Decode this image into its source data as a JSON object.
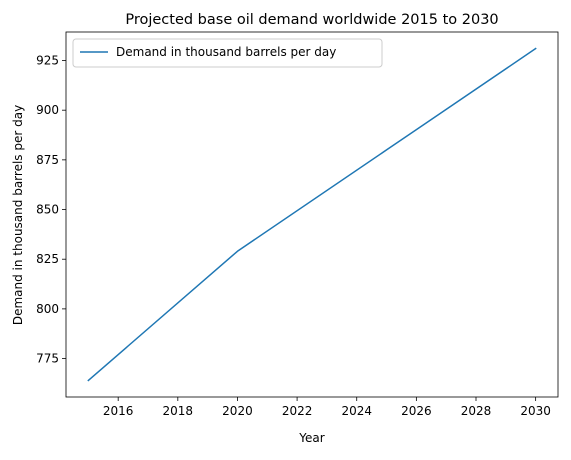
{
  "chart_data": {
    "type": "line",
    "title": "Projected base oil demand worldwide 2015 to 2030",
    "xlabel": "Year",
    "ylabel": "Demand in thousand barrels per day",
    "xlim": [
      2014.25,
      2030.75
    ],
    "ylim": [
      755.65,
      939.35
    ],
    "x_ticks": [
      2016,
      2018,
      2020,
      2022,
      2024,
      2026,
      2028,
      2030
    ],
    "y_ticks": [
      775,
      800,
      825,
      850,
      875,
      900,
      925
    ],
    "grid": false,
    "legend_position": "upper-left",
    "series": [
      {
        "name": "Demand in thousand barrels per day",
        "color": "#1f77b4",
        "x": [
          2015,
          2020,
          2025,
          2030
        ],
        "y": [
          764,
          829,
          880,
          931
        ]
      }
    ]
  }
}
